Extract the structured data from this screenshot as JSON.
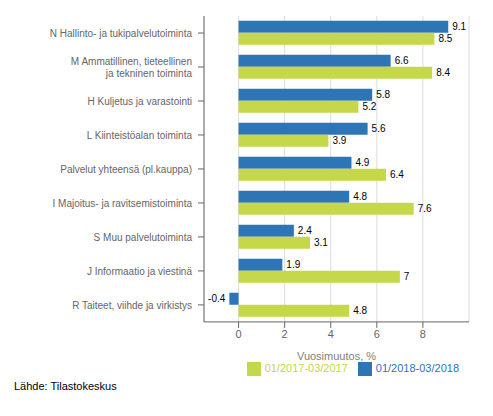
{
  "chart_data": {
    "type": "bar",
    "orientation": "horizontal",
    "categories": [
      "N Hallinto- ja tukipalvelutoiminta",
      "M Ammatillinen, tieteellinen\nja tekninen toiminta",
      "H Kuljetus ja varastointi",
      "L Kiinteistöalan toiminta",
      "Palvelut yhteensä (pl.kauppa)",
      "I Majoitus- ja ravitsemistoiminta",
      "S Muu palvelutoiminta",
      "J Informaatio ja viestinä",
      "R Taiteet, viihde ja virkistys"
    ],
    "series": [
      {
        "name": "01/2018-03/2018",
        "color": "#2E75B6",
        "values": [
          9.1,
          6.6,
          5.8,
          5.6,
          4.9,
          4.8,
          2.4,
          1.9,
          -0.4
        ]
      },
      {
        "name": "01/2017-03/2017",
        "color": "#C5D84A",
        "values": [
          8.5,
          8.4,
          5.2,
          3.9,
          6.4,
          7.6,
          3.1,
          7.0,
          4.8
        ]
      }
    ],
    "xlabel": "Vuosimuutos, %",
    "xlim": [
      -1.5,
      10
    ],
    "xticks": [
      0,
      2,
      4,
      6,
      8
    ],
    "grid": true,
    "legend": "lower right",
    "data_labels": true,
    "annotations": [
      "Lähde: Tilastokeskus"
    ]
  }
}
